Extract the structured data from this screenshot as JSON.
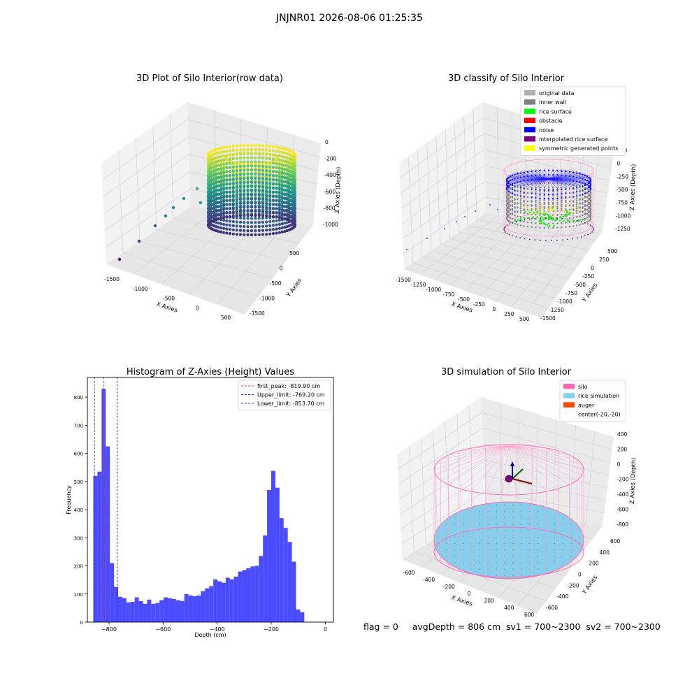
{
  "suptitle": "JNJNR01 2026-08-06 01:25:35",
  "status_text": "flag = 0     avgDepth = 806 cm  sv1 = 700~2300  sv2 = 700~2300",
  "chart_data": [
    {
      "type": "scatter3d",
      "title": "3D Plot of Silo Interior(row data)",
      "xlabel": "X Axies",
      "ylabel": "Y Axies",
      "zlabel": "Z Axies (Depth)",
      "x_ticks": [
        "-1500",
        "-1000",
        "-500",
        "0",
        "500"
      ],
      "y_ticks": [
        "500",
        "0",
        "-500",
        "-1000",
        "-1500"
      ],
      "z_ticks": [
        "0",
        "-200",
        "-400",
        "-600",
        "-800",
        "-1000"
      ],
      "colormap": "viridis",
      "grid": true
    },
    {
      "type": "scatter3d",
      "title": "3D classify of Silo Interior",
      "xlabel": "X Axies",
      "ylabel": "Y Axies",
      "zlabel": "Z Axies (Depth)",
      "x_ticks": [
        "-1500",
        "-1250",
        "-1000",
        "-750",
        "-500",
        "-250",
        "0",
        "250",
        "500"
      ],
      "y_ticks": [
        "500",
        "250",
        "0",
        "-250",
        "-500",
        "-750",
        "-1000",
        "-1250",
        "-1500"
      ],
      "z_ticks": [
        "250",
        "0",
        "-250",
        "-500",
        "-750",
        "-1000",
        "-1250"
      ],
      "legend_position": "top-right",
      "legend": [
        {
          "label": "original data",
          "color": "#b0b0b0"
        },
        {
          "label": "inner wall",
          "color": "#808080"
        },
        {
          "label": "rice surface",
          "color": "#00ff00"
        },
        {
          "label": "obstacle",
          "color": "#ff0000"
        },
        {
          "label": "noise",
          "color": "#0000ff"
        },
        {
          "label": "interpolated rice surface",
          "color": "#800080"
        },
        {
          "label": "symmetric generated points",
          "color": "#ffff00"
        }
      ],
      "grid": true
    },
    {
      "type": "bar",
      "title": "Histogram of Z-Axies (Height) Values",
      "xlabel": "Depth (cm)",
      "ylabel": "Frequency",
      "xlim": [
        -880,
        30
      ],
      "ylim": [
        0,
        870
      ],
      "x_ticks": [
        -800,
        -600,
        -400,
        -200,
        0
      ],
      "y_ticks": [
        0,
        100,
        200,
        300,
        400,
        500,
        600,
        700,
        800
      ],
      "bin_start": -858,
      "bin_width": 15.3,
      "values": [
        520,
        535,
        830,
        625,
        210,
        125,
        90,
        85,
        70,
        72,
        88,
        75,
        65,
        80,
        65,
        68,
        78,
        88,
        85,
        82,
        78,
        75,
        100,
        95,
        92,
        95,
        110,
        120,
        128,
        152,
        145,
        140,
        158,
        152,
        162,
        180,
        185,
        192,
        198,
        200,
        235,
        308,
        470,
        538,
        478,
        370,
        335,
        285,
        215,
        45,
        35
      ],
      "bar_color": "#4b4bff",
      "lines": [
        {
          "label": "first_peak: -819.90 cm",
          "value": -819.9,
          "color": "#ff2a2a"
        },
        {
          "label": "Upper_limit: -769.20 cm",
          "value": -769.2,
          "color": "#2a2aff"
        },
        {
          "label": "Lower_limit: -853.70 cm",
          "value": -853.7,
          "color": "#2a2aff"
        }
      ],
      "legend_position": "top-right",
      "grid": false
    },
    {
      "type": "surface3d",
      "title": "3D simulation of Silo Interior",
      "xlabel": "X Axies",
      "ylabel": "Y Axies",
      "zlabel": "Z Axies (Depth)",
      "x_ticks": [
        "-600",
        "-400",
        "-200",
        "0",
        "200",
        "400",
        "600"
      ],
      "y_ticks": [
        "600",
        "400",
        "200",
        "0",
        "-200",
        "-400",
        "-600"
      ],
      "z_ticks": [
        "400",
        "200",
        "0",
        "-200",
        "-400",
        "-600",
        "-800"
      ],
      "legend_position": "top-right",
      "legend": [
        {
          "label": "silo",
          "color": "#ff69b4"
        },
        {
          "label": "rice simulation",
          "color": "#87ceeb"
        },
        {
          "label": "auger",
          "color": "#ff4500"
        },
        {
          "label": "center(-20,-20)",
          "color": ""
        }
      ],
      "grid": true
    }
  ]
}
